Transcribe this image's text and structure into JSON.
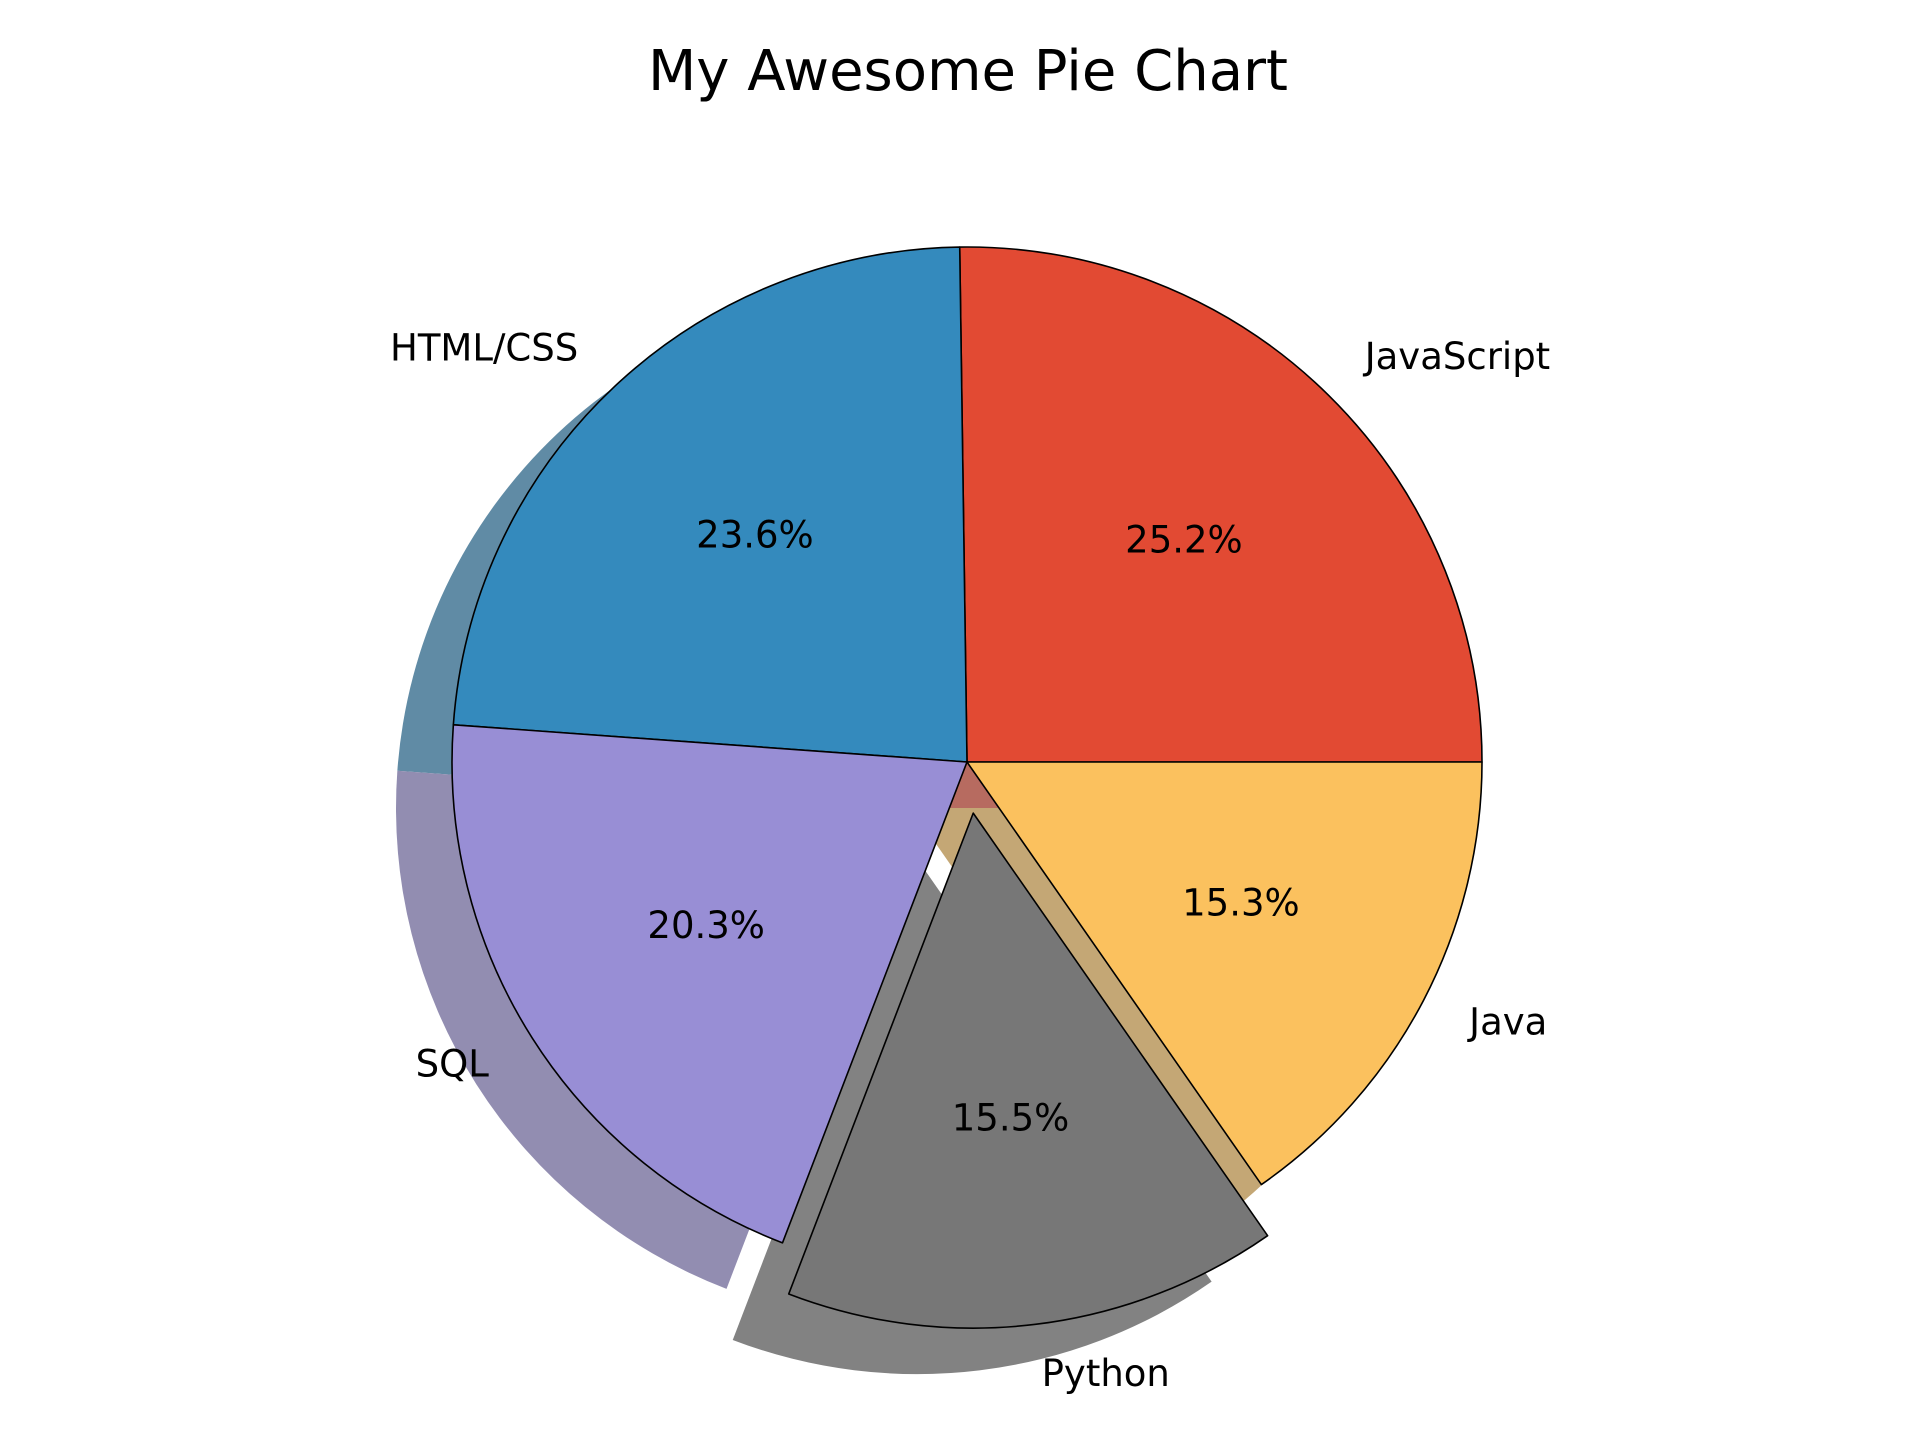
{
  "chart_data": {
    "type": "pie",
    "title": "My Awesome Pie Chart",
    "slices": [
      {
        "label": "JavaScript",
        "value": 25.2,
        "pct_label": "25.2%",
        "color": "#e24a33",
        "explode": 0
      },
      {
        "label": "HTML/CSS",
        "value": 23.6,
        "pct_label": "23.6%",
        "color": "#348abd",
        "explode": 0
      },
      {
        "label": "SQL",
        "value": 20.3,
        "pct_label": "20.3%",
        "color": "#988ed5",
        "explode": 0
      },
      {
        "label": "Python",
        "value": 15.5,
        "pct_label": "15.5%",
        "color": "#777777",
        "explode": 0.1
      },
      {
        "label": "Java",
        "value": 15.3,
        "pct_label": "15.3%",
        "color": "#fbc15e",
        "explode": 0
      }
    ],
    "start_angle": 0,
    "direction": "counterclockwise",
    "shadow": true,
    "legend": "none"
  }
}
